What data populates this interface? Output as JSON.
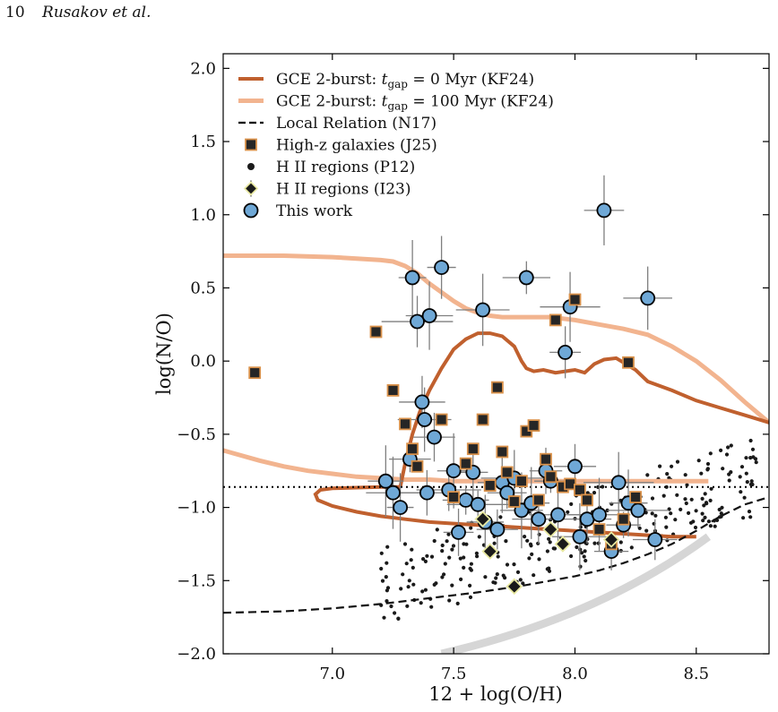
{
  "header": {
    "page_number": "10",
    "authors": "Rusakov et al."
  },
  "chart_data": {
    "type": "scatter",
    "xlabel": "12 + log(O/H)",
    "ylabel": "log(N/O)",
    "xlim": [
      6.55,
      8.8
    ],
    "ylim": [
      -2.0,
      2.1
    ],
    "xticks": [
      7.0,
      7.5,
      8.0,
      8.5
    ],
    "xtick_labels": [
      "7.0",
      "7.5",
      "8.0",
      "8.5"
    ],
    "yticks": [
      -2.0,
      -1.5,
      -1.0,
      -0.5,
      0.0,
      0.5,
      1.0,
      1.5,
      2.0
    ],
    "ytick_labels": [
      "−2.0",
      "−1.5",
      "−1.0",
      "−0.5",
      "0.0",
      "0.5",
      "1.0",
      "1.5",
      "2.0"
    ],
    "grid": false,
    "legend_position": "top-left",
    "reference_line_y": -0.86,
    "colors": {
      "gce_0": "#c0602e",
      "gce_100": "#f2b48f",
      "local": "#111111",
      "this_work": "#6fa8d6",
      "j25_edge": "#d9914a",
      "i23_edge": "#e8e8a0",
      "errorbar": "#7f7f7f",
      "grey_band": "#d6d6d6"
    },
    "legend": [
      {
        "key": "gce_0",
        "label": "GCE 2-burst: t_gap = 0 Myr (KF24)",
        "label_prefix": "GCE 2-burst: ",
        "label_sub": "gap",
        "label_suffix": " = 0 Myr (KF24)"
      },
      {
        "key": "gce_100",
        "label": "GCE 2-burst: t_gap = 100 Myr (KF24)",
        "label_prefix": "GCE 2-burst: ",
        "label_sub": "gap",
        "label_suffix": " = 100 Myr (KF24)"
      },
      {
        "key": "local",
        "label": "Local Relation (N17)"
      },
      {
        "key": "j25",
        "label": "High-z galaxies (J25)"
      },
      {
        "key": "p12",
        "label": "H II regions (P12)"
      },
      {
        "key": "i23",
        "label": "H II regions (I23)"
      },
      {
        "key": "this_work",
        "label": "This work"
      }
    ],
    "series": [
      {
        "name": "GCE 2-burst: t_gap = 0 Myr (KF24)",
        "type": "line",
        "x": [
          7.28,
          7.3,
          7.33,
          7.36,
          7.4,
          7.45,
          7.5,
          7.55,
          7.6,
          7.65,
          7.7,
          7.75,
          7.78,
          7.8,
          7.83,
          7.87,
          7.92,
          7.96,
          8.0,
          8.04,
          8.08,
          8.12,
          8.17,
          8.21,
          8.25,
          8.3,
          8.4,
          8.5,
          8.6,
          8.7,
          8.8
        ],
        "y": [
          -0.86,
          -0.7,
          -0.5,
          -0.35,
          -0.2,
          -0.05,
          0.08,
          0.15,
          0.19,
          0.19,
          0.17,
          0.1,
          0.0,
          -0.05,
          -0.07,
          -0.06,
          -0.08,
          -0.07,
          -0.06,
          -0.08,
          -0.02,
          0.01,
          0.02,
          -0.02,
          -0.06,
          -0.14,
          -0.2,
          -0.27,
          -0.32,
          -0.37,
          -0.42
        ]
      },
      {
        "name": "GCE 2-burst: t_gap = 0 Myr (KF24) lower branch",
        "type": "line",
        "x": [
          8.5,
          8.4,
          8.3,
          8.2,
          8.1,
          8.0,
          7.9,
          7.8,
          7.7,
          7.6,
          7.5,
          7.4,
          7.3,
          7.2,
          7.1,
          7.0,
          6.94,
          6.93,
          6.95,
          7.0,
          7.1,
          7.2,
          7.28
        ],
        "y": [
          -1.2,
          -1.2,
          -1.19,
          -1.18,
          -1.17,
          -1.16,
          -1.15,
          -1.14,
          -1.13,
          -1.12,
          -1.11,
          -1.1,
          -1.08,
          -1.06,
          -1.03,
          -0.99,
          -0.95,
          -0.91,
          -0.88,
          -0.87,
          -0.865,
          -0.86,
          -0.86
        ]
      },
      {
        "name": "GCE 2-burst: t_gap = 100 Myr (KF24)",
        "type": "line",
        "x": [
          6.55,
          6.8,
          7.0,
          7.1,
          7.2,
          7.25,
          7.3,
          7.35,
          7.4,
          7.45,
          7.5,
          7.55,
          7.6,
          7.65,
          7.7,
          7.75,
          7.8,
          7.85,
          7.9,
          8.0,
          8.1,
          8.2,
          8.3,
          8.4,
          8.5,
          8.6,
          8.7,
          8.8
        ],
        "y": [
          0.72,
          0.72,
          0.71,
          0.7,
          0.69,
          0.68,
          0.65,
          0.6,
          0.53,
          0.47,
          0.41,
          0.36,
          0.33,
          0.31,
          0.3,
          0.3,
          0.3,
          0.3,
          0.3,
          0.28,
          0.25,
          0.22,
          0.18,
          0.1,
          0.0,
          -0.13,
          -0.28,
          -0.42
        ]
      },
      {
        "name": "GCE 2-burst: t_gap = 100 Myr (KF24) lower branch",
        "type": "line",
        "x": [
          6.55,
          6.7,
          6.8,
          6.9,
          7.0,
          7.1,
          7.2,
          7.3,
          7.4,
          7.5,
          7.6,
          7.7,
          7.8,
          7.9,
          8.0,
          8.1,
          8.2,
          8.3,
          8.4,
          8.5,
          8.55
        ],
        "y": [
          -0.61,
          -0.68,
          -0.72,
          -0.75,
          -0.77,
          -0.79,
          -0.8,
          -0.81,
          -0.81,
          -0.82,
          -0.82,
          -0.82,
          -0.82,
          -0.82,
          -0.82,
          -0.82,
          -0.82,
          -0.82,
          -0.82,
          -0.82,
          -0.82
        ]
      },
      {
        "name": "Local Relation (N17)",
        "type": "dashed_line",
        "x": [
          6.55,
          6.8,
          7.0,
          7.2,
          7.4,
          7.6,
          7.8,
          7.9,
          8.0,
          8.1,
          8.2,
          8.3,
          8.4,
          8.5,
          8.6,
          8.7,
          8.8
        ],
        "y": [
          -1.72,
          -1.71,
          -1.69,
          -1.66,
          -1.62,
          -1.58,
          -1.53,
          -1.5,
          -1.47,
          -1.43,
          -1.38,
          -1.32,
          -1.25,
          -1.16,
          -1.06,
          -0.98,
          -0.93
        ]
      },
      {
        "name": "High-z galaxies (J25)",
        "type": "scatter",
        "x": [
          6.68,
          7.18,
          7.25,
          7.3,
          7.33,
          7.35,
          7.45,
          7.5,
          7.55,
          7.58,
          7.62,
          7.65,
          7.68,
          7.7,
          7.72,
          7.75,
          7.78,
          7.8,
          7.83,
          7.85,
          7.88,
          7.9,
          7.92,
          7.95,
          7.98,
          8.0,
          8.02,
          8.05,
          8.1,
          8.15,
          8.2,
          8.22,
          8.25
        ],
        "y": [
          -0.08,
          0.2,
          -0.2,
          -0.43,
          -0.6,
          -0.72,
          -0.4,
          -0.93,
          -0.7,
          -0.6,
          -0.4,
          -0.85,
          -0.18,
          -0.62,
          -0.76,
          -0.96,
          -0.82,
          -0.48,
          -0.44,
          -0.95,
          -0.67,
          -0.79,
          0.28,
          -0.86,
          -0.84,
          0.42,
          -0.88,
          -0.95,
          -1.15,
          -1.25,
          -1.08,
          -0.01,
          -0.93
        ]
      },
      {
        "name": "H II regions (I23)",
        "type": "scatter",
        "x": [
          7.62,
          7.65,
          7.75,
          7.9,
          7.95,
          8.15
        ],
        "y": [
          -1.08,
          -1.3,
          -1.54,
          -1.15,
          -1.25,
          -1.22
        ]
      },
      {
        "name": "This work",
        "type": "scatter",
        "x": [
          7.22,
          7.25,
          7.28,
          7.32,
          7.33,
          7.35,
          7.37,
          7.38,
          7.39,
          7.4,
          7.42,
          7.45,
          7.48,
          7.5,
          7.52,
          7.55,
          7.58,
          7.6,
          7.62,
          7.63,
          7.68,
          7.7,
          7.72,
          7.75,
          7.78,
          7.8,
          7.82,
          7.85,
          7.88,
          7.9,
          7.93,
          7.96,
          7.98,
          8.0,
          8.02,
          8.05,
          8.1,
          8.12,
          8.15,
          8.18,
          8.2,
          8.22,
          8.26,
          8.3,
          8.33
        ],
        "y": [
          -0.82,
          -0.9,
          -1.0,
          -0.67,
          0.57,
          0.27,
          -0.28,
          -0.4,
          -0.9,
          0.31,
          -0.52,
          0.64,
          -0.88,
          -0.75,
          -1.17,
          -0.95,
          -0.76,
          -0.98,
          0.35,
          -1.1,
          -1.15,
          -0.83,
          -0.9,
          -0.8,
          -1.02,
          0.57,
          -0.97,
          -1.08,
          -0.75,
          -0.82,
          -1.05,
          0.06,
          0.37,
          -0.72,
          -1.2,
          -1.08,
          -1.05,
          1.03,
          -1.3,
          -0.83,
          -1.12,
          -0.97,
          -1.02,
          0.43,
          -1.22
        ]
      }
    ]
  }
}
